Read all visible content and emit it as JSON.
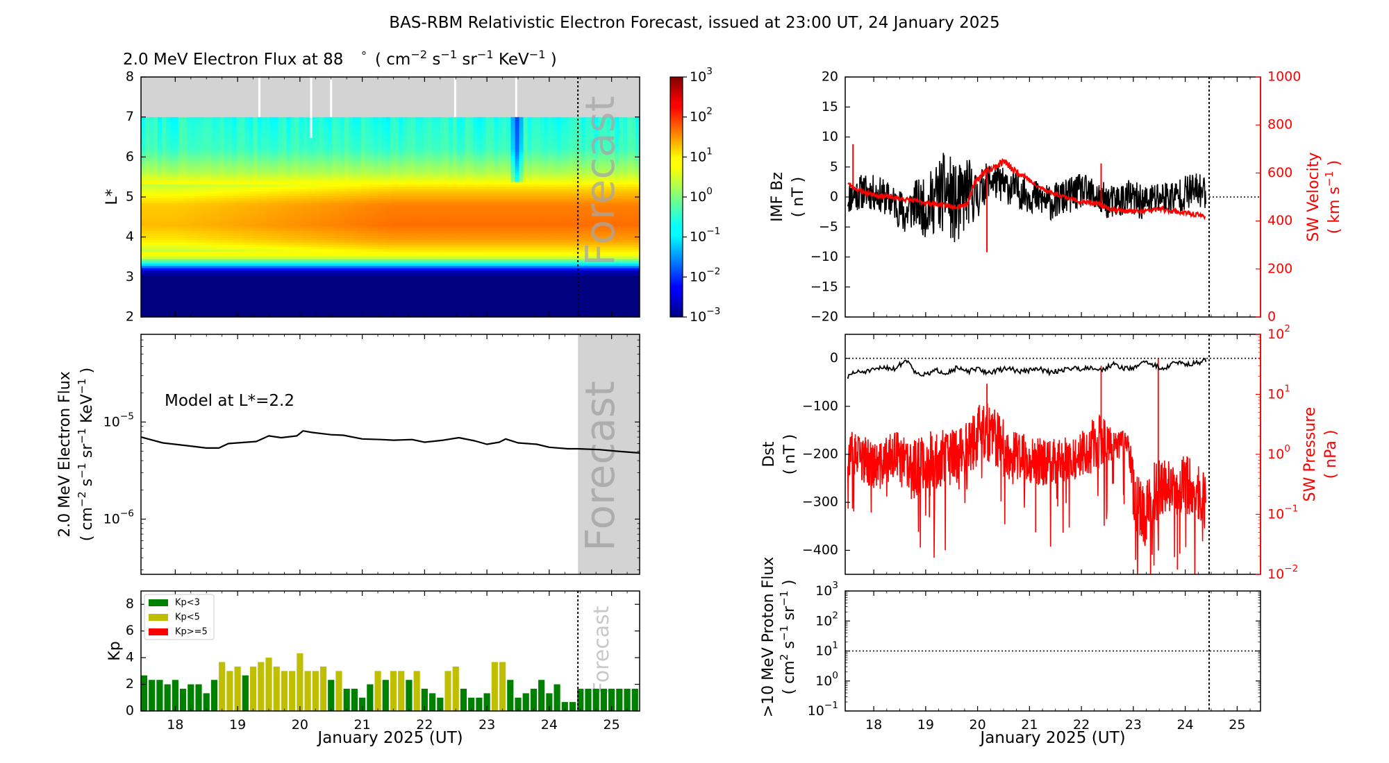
{
  "title": "BAS-RBM Relativistic Electron Forecast, issued at 23:00 UT, 24 January 2025",
  "colors": {
    "kp_low": "#008000",
    "kp_mid": "#bfbf00",
    "kp_high": "#ff0000",
    "red": "#ff0000",
    "black": "#000000",
    "forecast_shade": "#d3d3d3",
    "forecast_text": "#a6a6a6"
  },
  "chart_data": [
    {
      "id": "flux_map",
      "type": "heatmap",
      "title_prefix": "2.0 MeV Electron Flux at 88",
      "title_deg": "°",
      "title_units_parts": [
        "( cm",
        "−2",
        " s",
        "−1",
        " sr",
        "−1",
        " KeV",
        "−1",
        " )"
      ],
      "ylabel": "L*",
      "xlim": [
        17.45,
        25.45
      ],
      "ylim": [
        2,
        8
      ],
      "yticks": [
        2,
        3,
        4,
        5,
        6,
        7,
        8
      ],
      "forecast_label": "Forecast",
      "forecast_start": 24.46,
      "no_data_above_L": 7,
      "white_gaps_x": [
        19.35,
        20.18,
        20.5,
        22.49,
        23.47
      ],
      "L_profile": [
        {
          "L": 2.0,
          "log_flux": -3.0
        },
        {
          "L": 3.0,
          "log_flux": -3.0
        },
        {
          "L": 3.15,
          "log_flux": -2.6
        },
        {
          "L": 3.3,
          "log_flux": -1.0
        },
        {
          "L": 3.5,
          "log_flux": 0.6
        },
        {
          "L": 3.9,
          "log_flux": 1.3
        },
        {
          "L": 4.3,
          "log_flux": 1.6
        },
        {
          "L": 4.8,
          "log_flux": 1.5
        },
        {
          "L": 5.2,
          "log_flux": 1.0
        },
        {
          "L": 5.6,
          "log_flux": 0.3
        },
        {
          "L": 6.2,
          "log_flux": -0.4
        },
        {
          "L": 7.0,
          "log_flux": -0.6
        }
      ],
      "colorbar": {
        "min_exp": -3,
        "max_exp": 3,
        "ticks": [
          {
            "base": "10",
            "exp": "3"
          },
          {
            "base": "10",
            "exp": "2"
          },
          {
            "base": "10",
            "exp": "1"
          },
          {
            "base": "10",
            "exp": "0"
          },
          {
            "base": "10",
            "exp": "−1"
          },
          {
            "base": "10",
            "exp": "−2"
          },
          {
            "base": "10",
            "exp": "−3"
          }
        ]
      }
    },
    {
      "id": "flux_line",
      "type": "line",
      "ylabel": "2.0 MeV Electron Flux",
      "ylabel_units_parts": [
        "( cm",
        "−2",
        " s",
        "−1",
        " sr",
        "−1",
        " KeV",
        "−1",
        " )"
      ],
      "annotation": "Model at L*=2.2",
      "forecast_label": "Forecast",
      "forecast_start": 24.46,
      "xlim": [
        17.45,
        25.45
      ],
      "ylog": true,
      "ylim": [
        2.7e-07,
        8e-05
      ],
      "yticks": [
        {
          "value": 1e-05,
          "base": "10",
          "exp": "−5"
        },
        {
          "value": 1e-06,
          "base": "10",
          "exp": "−6"
        }
      ],
      "x": [
        17.45,
        17.8,
        18.2,
        18.5,
        18.7,
        18.85,
        19.0,
        19.3,
        19.5,
        19.7,
        19.95,
        20.05,
        20.2,
        20.5,
        20.7,
        21.0,
        21.3,
        21.5,
        21.8,
        22.0,
        22.3,
        22.55,
        22.8,
        23.0,
        23.2,
        23.3,
        23.5,
        23.8,
        24.0,
        24.3,
        24.46,
        24.8,
        25.1,
        25.45
      ],
      "y": [
        7e-06,
        6.1e-06,
        5.7e-06,
        5.4e-06,
        5.4e-06,
        6e-06,
        6.1e-06,
        6.3e-06,
        7.2e-06,
        6.9e-06,
        7.2e-06,
        8.1e-06,
        7.8e-06,
        7.4e-06,
        7.3e-06,
        6.7e-06,
        6.6e-06,
        6.5e-06,
        6.6e-06,
        6.2e-06,
        6.5e-06,
        6.9e-06,
        6.4e-06,
        5.9e-06,
        6.2e-06,
        6.7e-06,
        6.1e-06,
        5.9e-06,
        5.5e-06,
        5.3e-06,
        5.3e-06,
        5.2e-06,
        5e-06,
        4.8e-06
      ]
    },
    {
      "id": "kp",
      "type": "bar",
      "ylabel": "Kp",
      "xlabel": "January 2025 (UT)",
      "forecast_label": "Forecast",
      "forecast_start": 24.46,
      "xlim": [
        17.45,
        25.45
      ],
      "ylim": [
        0,
        9
      ],
      "yticks": [
        0,
        2,
        4,
        6,
        8
      ],
      "xticks": [
        18,
        19,
        20,
        21,
        22,
        23,
        24,
        25
      ],
      "legend_position": "upper-left",
      "legend": [
        {
          "label": "Kp<3",
          "color_key": "kp_low"
        },
        {
          "label": "Kp<5",
          "color_key": "kp_mid"
        },
        {
          "label": "Kp>=5",
          "color_key": "kp_high"
        }
      ],
      "start": 17.5,
      "step": 0.125,
      "values": [
        2.67,
        2.33,
        2.33,
        2.0,
        2.33,
        1.67,
        2.0,
        2.0,
        1.33,
        2.33,
        3.67,
        3.0,
        3.33,
        2.67,
        3.33,
        3.67,
        4.0,
        3.33,
        3.0,
        3.0,
        4.33,
        3.0,
        3.0,
        3.33,
        2.33,
        3.0,
        1.67,
        1.67,
        1.0,
        2.0,
        3.0,
        2.33,
        3.0,
        3.0,
        2.33,
        3.0,
        1.67,
        1.33,
        1.0,
        3.0,
        3.33,
        1.67,
        1.0,
        1.0,
        1.33,
        3.67,
        3.67,
        2.33,
        1.0,
        1.33,
        1.67,
        2.33,
        1.33,
        2.0,
        0.67,
        0.67,
        1.67,
        1.67,
        1.67,
        1.67,
        1.67,
        1.67,
        1.67,
        1.67
      ]
    },
    {
      "id": "imf_sw",
      "type": "line",
      "ylabel": "IMF Bz",
      "ylabel_units": "( nT )",
      "ylabel_right": "SW Velocity",
      "ylabel_right_units_parts": [
        "( km s",
        "−1",
        " )"
      ],
      "xlim": [
        17.45,
        25.45
      ],
      "ylim": [
        -20,
        20
      ],
      "yticks": [
        -20,
        -15,
        -10,
        -5,
        0,
        5,
        10,
        15,
        20
      ],
      "ylim_right": [
        0,
        1000
      ],
      "yticks_right": [
        0,
        200,
        400,
        600,
        800,
        1000
      ],
      "forecast_start": 24.46,
      "series": [
        {
          "name": "IMF Bz",
          "color_key": "black",
          "axis": "left",
          "x": [
            17.5,
            17.8,
            18.1,
            18.4,
            18.6,
            18.8,
            19.0,
            19.2,
            19.4,
            19.6,
            19.8,
            20.0,
            20.2,
            20.5,
            20.8,
            21.1,
            21.4,
            21.7,
            22.0,
            22.3,
            22.6,
            22.9,
            23.2,
            23.5,
            23.8,
            24.1,
            24.4
          ],
          "y": [
            0,
            1,
            0.5,
            -1,
            -3,
            -1,
            -2,
            0,
            1,
            -2,
            1,
            0,
            3,
            2,
            1,
            0,
            -1,
            0,
            1,
            0,
            -1,
            0,
            -1,
            0,
            0,
            1,
            1
          ],
          "amp": [
            3,
            3,
            3,
            3,
            4,
            4,
            5,
            6,
            7,
            7,
            6,
            4,
            3,
            3,
            3,
            3,
            3,
            3,
            3,
            3,
            3,
            3,
            3,
            3,
            3,
            3,
            3
          ]
        },
        {
          "name": "SW Velocity",
          "color_key": "red",
          "axis": "right",
          "x": [
            17.5,
            17.6,
            17.8,
            18.0,
            18.3,
            18.6,
            18.9,
            19.2,
            19.5,
            19.8,
            19.95,
            20.1,
            20.3,
            20.5,
            20.7,
            20.9,
            21.1,
            21.4,
            21.7,
            22.0,
            22.3,
            22.6,
            22.9,
            23.2,
            23.5,
            23.8,
            24.1,
            24.4
          ],
          "y": [
            560,
            540,
            520,
            510,
            500,
            490,
            480,
            470,
            460,
            470,
            560,
            600,
            620,
            650,
            610,
            590,
            550,
            520,
            500,
            480,
            470,
            450,
            440,
            440,
            450,
            440,
            430,
            420
          ],
          "amp": [
            10,
            10,
            10,
            10,
            10,
            10,
            10,
            10,
            10,
            12,
            15,
            15,
            15,
            15,
            15,
            12,
            10,
            10,
            10,
            10,
            10,
            10,
            10,
            10,
            10,
            10,
            10,
            10
          ],
          "spikes": [
            {
              "x": 17.6,
              "y": 720
            },
            {
              "x": 20.18,
              "y": 270
            },
            {
              "x": 22.38,
              "y": 640
            }
          ]
        }
      ]
    },
    {
      "id": "dst_pressure",
      "type": "line",
      "ylabel": "Dst",
      "ylabel_units": "( nT )",
      "ylabel_right": "SW Pressure",
      "ylabel_right_units": "( nPa )",
      "xlim": [
        17.45,
        25.45
      ],
      "ylim": [
        -450,
        50
      ],
      "yticks": [
        0,
        -100,
        -200,
        -300,
        -400
      ],
      "ylog_right": true,
      "ylim_right": [
        0.01,
        100
      ],
      "yticks_right": [
        {
          "value": 100,
          "base": "10",
          "exp": "2"
        },
        {
          "value": 10,
          "base": "10",
          "exp": "1"
        },
        {
          "value": 1,
          "base": "10",
          "exp": "0"
        },
        {
          "value": 0.1,
          "base": "10",
          "exp": "−1"
        },
        {
          "value": 0.01,
          "base": "10",
          "exp": "−2"
        }
      ],
      "forecast_start": 24.46,
      "series": [
        {
          "name": "Dst",
          "color_key": "black",
          "axis": "left",
          "x": [
            17.5,
            17.6,
            17.8,
            18.0,
            18.2,
            18.4,
            18.6,
            18.7,
            18.8,
            19.0,
            19.2,
            19.4,
            19.6,
            19.8,
            20.0,
            20.2,
            20.4,
            20.6,
            20.8,
            21.0,
            21.2,
            21.4,
            21.6,
            21.8,
            22.0,
            22.2,
            22.4,
            22.6,
            22.8,
            23.0,
            23.2,
            23.4,
            23.6,
            23.8,
            24.0,
            24.2,
            24.4
          ],
          "y": [
            -40,
            -30,
            -28,
            -25,
            -18,
            -22,
            -5,
            -8,
            -30,
            -35,
            -25,
            -30,
            -20,
            -28,
            -22,
            -30,
            -25,
            -20,
            -28,
            -25,
            -22,
            -30,
            -25,
            -20,
            -22,
            -18,
            -25,
            -12,
            -20,
            -22,
            -5,
            -15,
            -22,
            -8,
            -12,
            -10,
            -5
          ],
          "amp": [
            5,
            5,
            5,
            5,
            5,
            5,
            5,
            5,
            5,
            5,
            5,
            5,
            5,
            5,
            5,
            5,
            5,
            5,
            5,
            5,
            5,
            5,
            5,
            5,
            5,
            5,
            5,
            5,
            5,
            5,
            5,
            5,
            5,
            5,
            5,
            5,
            5
          ]
        },
        {
          "name": "SW Pressure",
          "color_key": "red",
          "axis": "right",
          "x": [
            17.5,
            17.8,
            18.1,
            18.4,
            18.7,
            19.0,
            19.3,
            19.6,
            19.9,
            20.1,
            20.3,
            20.5,
            20.8,
            21.1,
            21.4,
            21.7,
            22.0,
            22.3,
            22.6,
            22.9,
            23.0,
            23.2,
            23.5,
            23.8,
            24.1,
            24.4
          ],
          "y": [
            1.0,
            0.8,
            0.6,
            1.0,
            0.5,
            0.8,
            0.8,
            1.0,
            1.5,
            2.5,
            2.0,
            1.2,
            0.9,
            0.8,
            0.7,
            0.9,
            1.0,
            1.5,
            1.5,
            1.5,
            0.2,
            0.1,
            0.25,
            0.3,
            0.3,
            0.15
          ],
          "amp_log": [
            0.4,
            0.4,
            0.4,
            0.4,
            0.5,
            0.5,
            0.5,
            0.5,
            0.5,
            0.5,
            0.5,
            0.5,
            0.4,
            0.4,
            0.4,
            0.4,
            0.4,
            0.5,
            0.3,
            0.2,
            0.5,
            0.6,
            0.6,
            0.5,
            0.5,
            0.5
          ],
          "spikes": [
            {
              "x": 20.18,
              "y": 15
            },
            {
              "x": 22.38,
              "y": 30
            },
            {
              "x": 23.48,
              "y": 40
            },
            {
              "x": 21.12,
              "y": 0.05
            },
            {
              "x": 23.85,
              "y": 0.012
            }
          ]
        }
      ]
    },
    {
      "id": "proton",
      "type": "line",
      "ylabel": ">10 MeV Proton Flux",
      "ylabel_units_parts": [
        "( cm",
        "2",
        " s",
        "−1",
        " sr",
        "−1",
        " )"
      ],
      "xlabel": "January 2025 (UT)",
      "xlim": [
        17.45,
        25.45
      ],
      "ylog": true,
      "ylim": [
        0.1,
        1000
      ],
      "yticks": [
        {
          "value": 1000,
          "base": "10",
          "exp": "3"
        },
        {
          "value": 100,
          "base": "10",
          "exp": "2"
        },
        {
          "value": 10,
          "base": "10",
          "exp": "1"
        },
        {
          "value": 1,
          "base": "10",
          "exp": "0"
        },
        {
          "value": 0.1,
          "base": "10",
          "exp": "−1"
        }
      ],
      "xticks": [
        18,
        19,
        20,
        21,
        22,
        23,
        24,
        25
      ],
      "threshold": 10,
      "forecast_start": 24.46
    }
  ]
}
